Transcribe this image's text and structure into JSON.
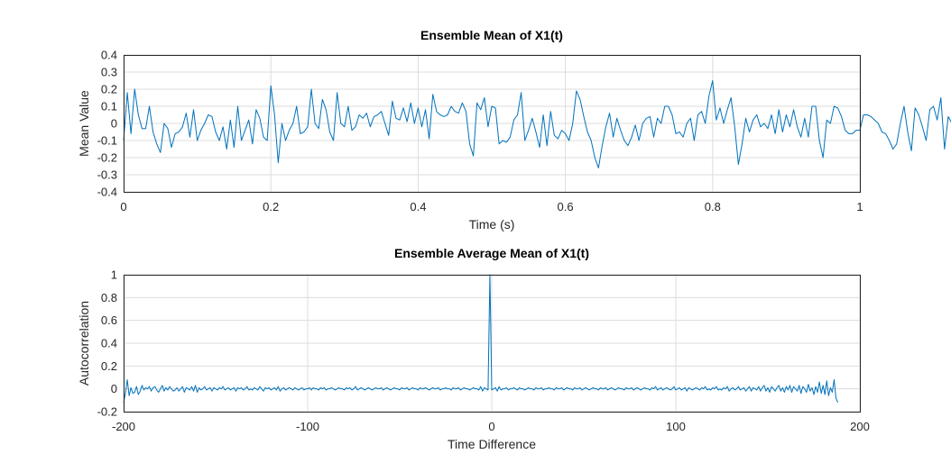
{
  "chart_data": [
    {
      "type": "line",
      "title": "Ensemble Mean of X1(t)",
      "xlabel": "Time (s)",
      "ylabel": "Mean Value",
      "xlim": [
        0,
        1
      ],
      "ylim": [
        -0.4,
        0.4
      ],
      "xticks": [
        0,
        0.2,
        0.4,
        0.6,
        0.8,
        1
      ],
      "xtick_labels": [
        "0",
        "0.2",
        "0.4",
        "0.6",
        "0.8",
        "1"
      ],
      "yticks": [
        0.4,
        0.3,
        0.2,
        0.1,
        0,
        -0.1,
        -0.2,
        -0.3,
        -0.4
      ],
      "ytick_labels": [
        "0.4",
        "0.3",
        "0.2",
        "0.1",
        "0",
        "-0.1",
        "-0.2",
        "-0.3",
        "-0.4"
      ],
      "grid": true,
      "legend": "none",
      "color": "#0072bd",
      "x_start": 0,
      "x_step": 0.005,
      "y": [
        -0.1,
        0.18,
        -0.06,
        0.2,
        0.05,
        -0.03,
        -0.03,
        0.1,
        -0.05,
        -0.12,
        -0.17,
        0.0,
        -0.03,
        -0.14,
        -0.06,
        -0.05,
        -0.02,
        0.06,
        -0.08,
        0.08,
        -0.1,
        -0.04,
        0.0,
        0.05,
        0.04,
        -0.05,
        -0.1,
        -0.02,
        -0.15,
        0.02,
        -0.14,
        0.1,
        -0.1,
        -0.04,
        0.02,
        -0.12,
        0.08,
        0.03,
        -0.08,
        -0.1,
        0.22,
        0.05,
        -0.23,
        0.0,
        -0.1,
        -0.04,
        0.0,
        0.1,
        -0.06,
        -0.05,
        -0.02,
        0.2,
        0.0,
        -0.03,
        0.14,
        0.08,
        -0.05,
        -0.1,
        0.18,
        0.0,
        -0.02,
        0.1,
        -0.04,
        -0.02,
        0.05,
        0.03,
        0.06,
        -0.02,
        0.04,
        0.05,
        0.07,
        0.0,
        -0.07,
        0.13,
        0.03,
        0.02,
        0.09,
        0.01,
        0.12,
        0.0,
        0.09,
        -0.02,
        0.08,
        -0.09,
        0.17,
        0.07,
        0.05,
        0.04,
        0.05,
        0.1,
        0.07,
        0.06,
        0.12,
        0.07,
        -0.12,
        -0.19,
        0.12,
        0.08,
        0.15,
        -0.02,
        0.1,
        0.09,
        -0.12,
        -0.1,
        -0.11,
        -0.08,
        0.02,
        0.05,
        0.18,
        -0.1,
        -0.04,
        0.03,
        -0.05,
        -0.14,
        0.05,
        -0.13,
        0.07,
        -0.07,
        -0.09,
        -0.04,
        -0.06,
        -0.1,
        0.0,
        0.19,
        0.14,
        0.04,
        -0.05,
        -0.1,
        -0.2,
        -0.26,
        -0.13,
        -0.02,
        0.06,
        -0.08,
        0.03,
        -0.04,
        -0.1,
        -0.13,
        -0.08,
        -0.01,
        -0.1,
        0.0,
        0.03,
        0.04,
        -0.08,
        0.03,
        0.0,
        0.1,
        0.1,
        0.05,
        -0.06,
        -0.05,
        -0.08,
        0.0,
        0.03,
        -0.1,
        0.05,
        0.07,
        0.0,
        0.16,
        0.25,
        0.02,
        0.09,
        0.0,
        0.08,
        0.15,
        -0.02,
        -0.24,
        -0.12,
        0.03,
        -0.05,
        0.02,
        0.05,
        -0.02,
        0.0,
        -0.03,
        0.05,
        -0.06,
        0.08,
        -0.05,
        0.05,
        -0.02,
        0.08,
        -0.02,
        -0.08,
        0.03,
        -0.08,
        0.1,
        0.1,
        -0.1,
        -0.2,
        0.02,
        0.0,
        0.1,
        0.09,
        0.04,
        -0.04,
        -0.06,
        -0.06,
        -0.04,
        -0.04,
        0.05,
        0.05,
        0.04,
        0.02,
        0.0,
        -0.05,
        -0.06,
        -0.1,
        -0.15,
        -0.12,
        0.0,
        0.1,
        -0.05,
        -0.16,
        0.09,
        0.05,
        -0.02,
        -0.1,
        0.08,
        0.1,
        0.02,
        0.15,
        -0.15,
        0.04,
        0.0,
        0.1,
        0.15,
        0.16,
        -0.12,
        0.05,
        -0.02,
        0.1,
        0.02,
        0.12,
        0.07,
        0.06,
        0.08,
        0.04,
        0.1,
        -0.1,
        -0.12,
        -0.12
      ]
    },
    {
      "type": "line",
      "title": "Ensemble Average Mean of X1(t)",
      "xlabel": "Time Difference",
      "ylabel": "Autocorrelation",
      "xlim": [
        -200,
        200
      ],
      "ylim": [
        -0.2,
        1
      ],
      "xticks": [
        -200,
        -100,
        0,
        100,
        200
      ],
      "xtick_labels": [
        "-200",
        "-100",
        "0",
        "100",
        "200"
      ],
      "yticks": [
        1,
        0.8,
        0.6,
        0.4,
        0.2,
        0,
        -0.2
      ],
      "ytick_labels": [
        "1",
        "0.8",
        "0.6",
        "0.4",
        "0.2",
        "0",
        "-0.2"
      ],
      "grid": true,
      "legend": "none",
      "color": "#0072bd",
      "x_start": -200,
      "x_step": 1,
      "y": [
        -0.12,
        -0.04,
        0.08,
        -0.06,
        0.01,
        -0.04,
        -0.03,
        0.02,
        -0.05,
        -0.02,
        0.03,
        -0.01,
        0.01,
        0.0,
        0.02,
        -0.02,
        0.01,
        0.02,
        -0.01,
        -0.03,
        0.0,
        0.03,
        -0.02,
        0.01,
        -0.01,
        0.02,
        0.0,
        -0.02,
        -0.01,
        0.01,
        -0.02,
        0.0,
        0.02,
        -0.03,
        0.01,
        0.0,
        -0.01,
        0.02,
        -0.02,
        0.03,
        -0.03,
        0.01,
        -0.01,
        0.0,
        0.02,
        -0.01,
        0.0,
        0.01,
        -0.02,
        0.01,
        0.0,
        -0.01,
        0.01,
        0.0,
        0.02,
        -0.01,
        0.0,
        0.01,
        -0.01,
        0.0,
        0.01,
        -0.02,
        0.01,
        0.0,
        0.01,
        -0.01,
        0.0,
        0.02,
        -0.01,
        0.0,
        -0.01,
        0.01,
        0.0,
        -0.01,
        0.02,
        0.0,
        -0.02,
        0.01,
        0.0,
        0.01,
        -0.01,
        0.0,
        0.01,
        -0.01,
        0.02,
        -0.02,
        0.0,
        0.01,
        -0.01,
        0.0,
        0.01,
        0.0,
        -0.01,
        0.01,
        0.0,
        -0.01,
        0.0,
        0.01,
        -0.01,
        0.0,
        0.0,
        0.01,
        -0.01,
        0.01,
        0.0,
        0.0,
        -0.01,
        0.01,
        0.0,
        0.01,
        -0.01,
        0.0,
        0.0,
        0.01,
        0.0,
        -0.01,
        0.0,
        0.01,
        0.0,
        0.0,
        -0.01,
        0.01,
        0.0,
        0.01,
        -0.01,
        0.0,
        0.02,
        -0.01,
        0.0,
        0.01,
        0.0,
        -0.01,
        0.0,
        0.01,
        0.0,
        -0.01,
        0.0,
        0.01,
        0.0,
        0.0,
        0.01,
        -0.01,
        0.0,
        0.01,
        0.0,
        -0.01,
        0.0,
        0.01,
        0.0,
        0.0,
        -0.01,
        0.01,
        0.0,
        0.0,
        0.01,
        -0.01,
        0.0,
        0.01,
        0.0,
        0.0,
        -0.01,
        0.01,
        0.0,
        0.0,
        0.01,
        0.0,
        -0.01,
        0.0,
        0.01,
        0.0,
        0.0,
        0.01,
        -0.01,
        0.0,
        0.0,
        0.01,
        0.0,
        0.0,
        -0.01,
        0.01,
        0.0,
        0.0,
        0.01,
        -0.01,
        0.0,
        0.01,
        0.0,
        0.0,
        -0.01,
        0.0,
        0.01,
        0.0,
        0.0,
        -0.01,
        0.02,
        -0.02,
        0.01,
        0.0,
        -0.01,
        1.0,
        -0.01,
        0.0,
        0.01,
        -0.02,
        0.02,
        -0.01,
        0.0,
        0.0,
        0.01,
        -0.01,
        0.0,
        0.0,
        0.01,
        0.0,
        -0.01,
        0.01,
        0.0,
        0.0,
        -0.01,
        0.0,
        0.01,
        0.0,
        0.0,
        -0.01,
        0.01,
        0.0,
        0.0,
        0.01,
        -0.01,
        0.0,
        0.0,
        0.01,
        0.0,
        0.0,
        -0.01,
        0.01,
        0.0,
        0.0,
        0.01,
        -0.01,
        0.0,
        0.01,
        0.0,
        0.0,
        -0.01,
        0.01,
        0.0,
        0.0,
        0.01,
        -0.01,
        0.0,
        0.01,
        0.0,
        -0.01,
        0.0,
        0.01,
        0.0,
        0.0,
        -0.01,
        0.01,
        0.0,
        0.0,
        0.01,
        -0.01,
        0.0,
        0.01,
        0.0,
        -0.01,
        0.0,
        0.01,
        0.0,
        0.0,
        -0.01,
        0.01,
        0.0,
        0.0,
        0.01,
        -0.01,
        0.0,
        0.01,
        0.0,
        -0.01,
        0.0,
        0.01,
        0.0,
        0.0,
        -0.01,
        0.01,
        0.0,
        0.02,
        -0.01,
        0.0,
        0.01,
        -0.01,
        0.0,
        0.01,
        0.0,
        -0.01,
        0.0,
        0.02,
        -0.01,
        0.0,
        0.01,
        -0.01,
        0.0,
        0.01,
        -0.02,
        0.01,
        0.0,
        -0.01,
        0.0,
        0.01,
        0.0,
        -0.01,
        0.01,
        0.0,
        0.02,
        -0.01,
        0.0,
        -0.01,
        0.01,
        0.0,
        0.02,
        -0.01,
        0.0,
        -0.01,
        0.01,
        0.0,
        0.02,
        -0.02,
        0.0,
        0.01,
        -0.01,
        0.0,
        0.02,
        -0.01,
        0.0,
        0.01,
        -0.02,
        0.0,
        0.02,
        -0.02,
        0.01,
        0.0,
        -0.01,
        0.02,
        -0.02,
        0.01,
        0.03,
        -0.02,
        0.01,
        -0.03,
        0.02,
        0.0,
        -0.02,
        0.01,
        0.03,
        -0.02,
        0.01,
        -0.03,
        0.02,
        -0.01,
        0.03,
        -0.03,
        0.02,
        0.0,
        -0.02,
        0.03,
        -0.04,
        0.02,
        0.0,
        -0.03,
        0.04,
        -0.02,
        0.01,
        -0.05,
        0.02,
        -0.03,
        0.06,
        -0.04,
        0.03,
        -0.05,
        0.07,
        -0.06,
        0.01,
        -0.03,
        0.08,
        -0.08,
        -0.12
      ]
    }
  ]
}
